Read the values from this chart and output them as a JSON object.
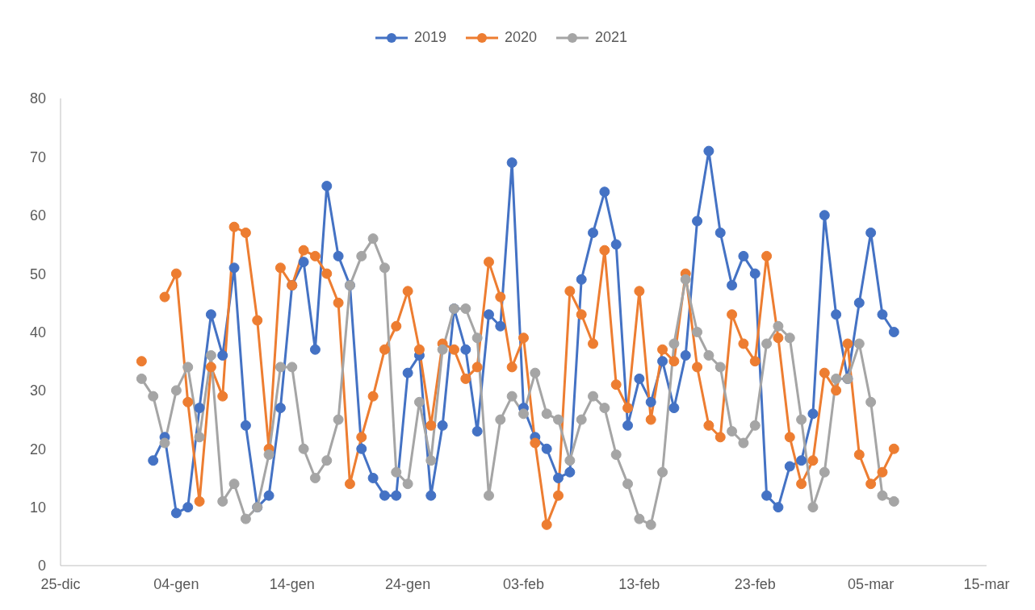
{
  "chart_data": {
    "type": "line",
    "x": [
      "2021-01-01",
      "2021-01-02",
      "2021-01-03",
      "2021-01-04",
      "2021-01-05",
      "2021-01-06",
      "2021-01-07",
      "2021-01-08",
      "2021-01-09",
      "2021-01-10",
      "2021-01-11",
      "2021-01-12",
      "2021-01-13",
      "2021-01-14",
      "2021-01-15",
      "2021-01-16",
      "2021-01-17",
      "2021-01-18",
      "2021-01-19",
      "2021-01-20",
      "2021-01-21",
      "2021-01-22",
      "2021-01-23",
      "2021-01-24",
      "2021-01-25",
      "2021-01-26",
      "2021-01-27",
      "2021-01-28",
      "2021-01-29",
      "2021-01-30",
      "2021-01-31",
      "2021-02-01",
      "2021-02-02",
      "2021-02-03",
      "2021-02-04",
      "2021-02-05",
      "2021-02-06",
      "2021-02-07",
      "2021-02-08",
      "2021-02-09",
      "2021-02-10",
      "2021-02-11",
      "2021-02-12",
      "2021-02-13",
      "2021-02-14",
      "2021-02-15",
      "2021-02-16",
      "2021-02-17",
      "2021-02-18",
      "2021-02-19",
      "2021-02-20",
      "2021-02-21",
      "2021-02-22",
      "2021-02-23",
      "2021-02-24",
      "2021-02-25",
      "2021-02-26",
      "2021-02-27",
      "2021-02-28",
      "2021-03-01",
      "2021-03-02",
      "2021-03-03",
      "2021-03-04",
      "2021-03-05",
      "2021-03-06",
      "2021-03-07"
    ],
    "series": [
      {
        "name": "2019",
        "color": "#4472c4",
        "values": [
          null,
          18,
          22,
          9,
          10,
          27,
          43,
          36,
          51,
          24,
          10,
          12,
          27,
          48,
          52,
          37,
          65,
          53,
          48,
          20,
          15,
          12,
          12,
          33,
          36,
          12,
          24,
          44,
          37,
          23,
          43,
          41,
          69,
          27,
          22,
          20,
          15,
          16,
          49,
          57,
          64,
          55,
          24,
          32,
          28,
          35,
          27,
          36,
          59,
          71,
          57,
          48,
          53,
          50,
          12,
          10,
          17,
          18,
          26,
          60,
          43,
          32,
          45,
          57,
          43,
          40
        ]
      },
      {
        "name": "2020",
        "color": "#ed7d31",
        "values": [
          35,
          null,
          46,
          50,
          28,
          11,
          34,
          29,
          58,
          57,
          42,
          20,
          51,
          48,
          54,
          53,
          50,
          45,
          14,
          22,
          29,
          37,
          41,
          47,
          37,
          24,
          38,
          37,
          32,
          34,
          52,
          46,
          34,
          39,
          21,
          7,
          12,
          47,
          43,
          38,
          54,
          31,
          27,
          47,
          25,
          37,
          35,
          50,
          34,
          24,
          22,
          43,
          38,
          35,
          53,
          39,
          22,
          14,
          18,
          33,
          30,
          38,
          19,
          14,
          16,
          20
        ]
      },
      {
        "name": "2021",
        "color": "#a5a5a5",
        "values": [
          32,
          29,
          21,
          30,
          34,
          22,
          36,
          11,
          14,
          8,
          10,
          19,
          34,
          34,
          20,
          15,
          18,
          25,
          48,
          53,
          56,
          51,
          16,
          14,
          28,
          18,
          37,
          44,
          44,
          39,
          12,
          25,
          29,
          26,
          33,
          26,
          25,
          18,
          25,
          29,
          27,
          19,
          14,
          8,
          7,
          16,
          38,
          49,
          40,
          36,
          34,
          23,
          21,
          24,
          38,
          41,
          39,
          25,
          10,
          16,
          32,
          32,
          38,
          28,
          12,
          11
        ]
      }
    ],
    "xlim": [
      "2020-12-25",
      "2021-03-15"
    ],
    "xticks": [
      {
        "value": "2020-12-25",
        "label": "25-dic"
      },
      {
        "value": "2021-01-04",
        "label": "04-gen"
      },
      {
        "value": "2021-01-14",
        "label": "14-gen"
      },
      {
        "value": "2021-01-24",
        "label": "24-gen"
      },
      {
        "value": "2021-02-03",
        "label": "03-feb"
      },
      {
        "value": "2021-02-13",
        "label": "13-feb"
      },
      {
        "value": "2021-02-23",
        "label": "23-feb"
      },
      {
        "value": "2021-03-05",
        "label": "05-mar"
      },
      {
        "value": "2021-03-15",
        "label": "15-mar"
      }
    ],
    "ylim": [
      0,
      80
    ],
    "yticks": [
      0,
      10,
      20,
      30,
      40,
      50,
      60,
      70,
      80
    ],
    "legend": "top",
    "marker": "circle",
    "line_style": "solid"
  }
}
